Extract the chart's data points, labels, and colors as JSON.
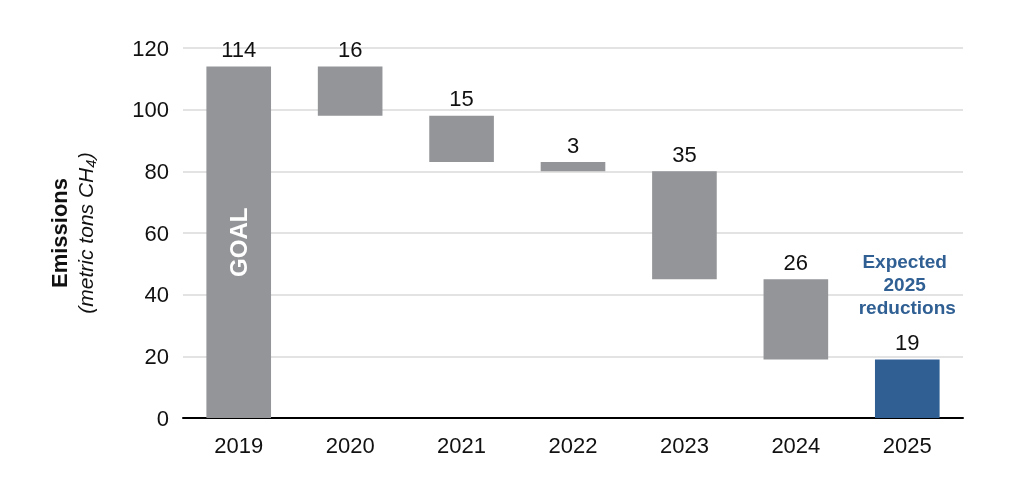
{
  "chart_data": {
    "type": "bar",
    "ylabel": "Emissions (metric tons CH₄)",
    "categories": [
      "2019",
      "2020",
      "2021",
      "2022",
      "2023",
      "2024",
      "2025"
    ],
    "values": [
      114,
      16,
      15,
      3,
      35,
      26,
      19
    ],
    "base": [
      0,
      98,
      83,
      80,
      45,
      19,
      0
    ],
    "colors": [
      "#939598",
      "#939598",
      "#939598",
      "#939598",
      "#939598",
      "#939598",
      "#2f5f93"
    ],
    "ylim": [
      0,
      120
    ],
    "yticks": [
      0,
      20,
      40,
      60,
      80,
      100,
      120
    ],
    "grid": "y",
    "data_labels": true,
    "annotations": [
      "GOAL",
      "Expected 2025 reductions"
    ]
  }
}
